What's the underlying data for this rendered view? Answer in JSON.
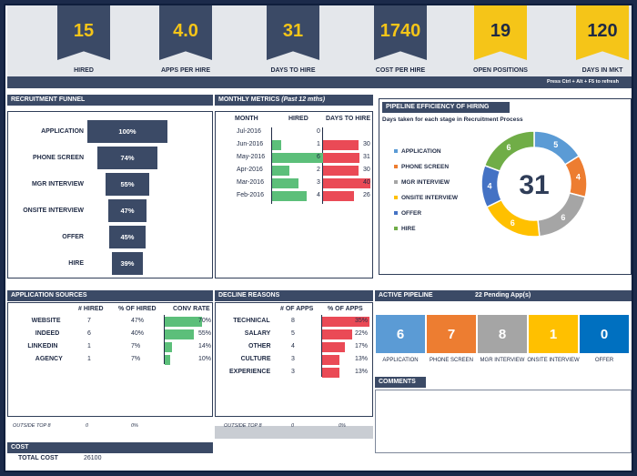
{
  "kpis": [
    {
      "value": "15",
      "label": "HIRED",
      "style": "dark"
    },
    {
      "value": "4.0",
      "label": "APPS PER HIRE",
      "style": "dark"
    },
    {
      "value": "31",
      "label": "DAYS TO HIRE",
      "style": "dark"
    },
    {
      "value": "1740",
      "label": "COST PER HIRE",
      "style": "dark"
    },
    {
      "value": "19",
      "label": "OPEN POSITIONS",
      "style": "gold"
    },
    {
      "value": "120",
      "label": "DAYS IN MKT",
      "style": "gold"
    }
  ],
  "refresh_hint": "Press Ctrl + Alt + F5 to refresh",
  "funnel": {
    "title": "RECRUITMENT FUNNEL",
    "stages": [
      {
        "label": "APPLICATION",
        "pct": "100%",
        "w": 1.0
      },
      {
        "label": "PHONE SCREEN",
        "pct": "74%",
        "w": 0.74
      },
      {
        "label": "MGR INTERVIEW",
        "pct": "55%",
        "w": 0.55
      },
      {
        "label": "ONSITE INTERVIEW",
        "pct": "47%",
        "w": 0.47
      },
      {
        "label": "OFFER",
        "pct": "45%",
        "w": 0.45
      },
      {
        "label": "HIRE",
        "pct": "39%",
        "w": 0.39
      }
    ]
  },
  "monthly": {
    "title": "MONTHLY METRICS",
    "subtitle": "(Past 12 mths)",
    "cols": [
      "MONTH",
      "HIRED",
      "DAYS TO HIRE"
    ],
    "rows": [
      {
        "month": "Jul-2016",
        "hired": "0",
        "days": "",
        "hv": 0,
        "dv": 0
      },
      {
        "month": "Jun-2016",
        "hired": "1",
        "days": "30",
        "hv": 1,
        "dv": 30
      },
      {
        "month": "May-2016",
        "hired": "6",
        "days": "31",
        "hv": 6,
        "dv": 31
      },
      {
        "month": "Apr-2016",
        "hired": "2",
        "days": "30",
        "hv": 2,
        "dv": 30
      },
      {
        "month": "Mar-2016",
        "hired": "3",
        "days": "40",
        "hv": 3,
        "dv": 40
      },
      {
        "month": "Feb-2016",
        "hired": "4",
        "days": "26",
        "hv": 4,
        "dv": 26
      }
    ]
  },
  "pipeline_eff": {
    "title": "PIPELINE EFFICIENCY OF HIRING",
    "subtitle": "Days taken for each stage in Recruitment Process",
    "center": "31",
    "legend": [
      {
        "label": "APPLICATION",
        "color": "#5b9bd5",
        "value": "5",
        "v": 5
      },
      {
        "label": "PHONE SCREEN",
        "color": "#ed7d31",
        "value": "4",
        "v": 4
      },
      {
        "label": "MGR INTERVIEW",
        "color": "#a5a5a5",
        "value": "6",
        "v": 6
      },
      {
        "label": "ONSITE INTERVIEW",
        "color": "#ffc000",
        "value": "6",
        "v": 6
      },
      {
        "label": "OFFER",
        "color": "#4472c4",
        "value": "4",
        "v": 4
      },
      {
        "label": "HIRE",
        "color": "#70ad47",
        "value": "6",
        "v": 6
      }
    ]
  },
  "sources": {
    "title": "APPLICATION SOURCES",
    "cols": [
      "# HIRED",
      "% OF HIRED",
      "CONV RATE"
    ],
    "rows": [
      {
        "name": "WEBSITE",
        "hired": "7",
        "pct": "47%",
        "conv": "70%",
        "cv": 0.7
      },
      {
        "name": "INDEED",
        "hired": "6",
        "pct": "40%",
        "conv": "55%",
        "cv": 0.55
      },
      {
        "name": "LINKEDIN",
        "hired": "1",
        "pct": "7%",
        "conv": "14%",
        "cv": 0.14
      },
      {
        "name": "AGENCY",
        "hired": "1",
        "pct": "7%",
        "conv": "10%",
        "cv": 0.1
      }
    ],
    "outside": {
      "label": "OUTSIDE TOP 8",
      "hired": "0",
      "pct": "0%"
    }
  },
  "decline": {
    "title": "DECLINE REASONS",
    "cols": [
      "# OF APPS",
      "% OF APPS"
    ],
    "rows": [
      {
        "name": "TECHNICAL",
        "apps": "8",
        "pct": "35%",
        "pv": 0.35
      },
      {
        "name": "SALARY",
        "apps": "5",
        "pct": "22%",
        "pv": 0.22
      },
      {
        "name": "OTHER",
        "apps": "4",
        "pct": "17%",
        "pv": 0.17
      },
      {
        "name": "CULTURE",
        "apps": "3",
        "pct": "13%",
        "pv": 0.13
      },
      {
        "name": "EXPERIENCE",
        "apps": "3",
        "pct": "13%",
        "pv": 0.13
      }
    ],
    "outside": {
      "label": "OUTSIDE TOP 8",
      "apps": "0",
      "pct": "0%"
    }
  },
  "active": {
    "title": "ACTIVE PIPELINE",
    "pending": "22 Pending App(s)",
    "tiles": [
      {
        "value": "6",
        "label": "APPLICATION",
        "color": "#5b9bd5"
      },
      {
        "value": "7",
        "label": "PHONE SCREEN",
        "color": "#ed7d31"
      },
      {
        "value": "8",
        "label": "MGR INTERVIEW",
        "color": "#a5a5a5"
      },
      {
        "value": "1",
        "label": "ONSITE INTERVIEW",
        "color": "#ffc000"
      },
      {
        "value": "0",
        "label": "OFFER",
        "color": "#0070c0"
      }
    ]
  },
  "comments_title": "COMMENTS",
  "cost": {
    "title": "COST",
    "label": "TOTAL COST",
    "value": "26100"
  }
}
